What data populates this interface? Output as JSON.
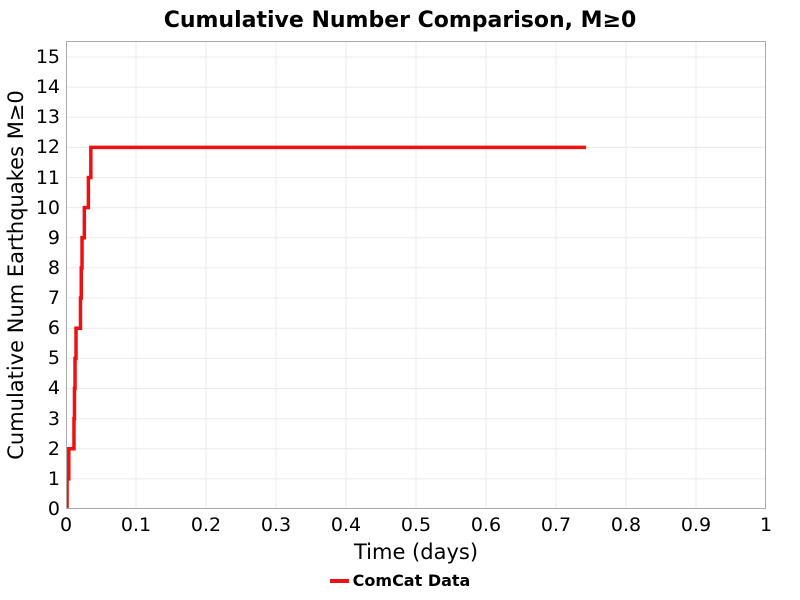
{
  "chart_data": {
    "type": "line",
    "title": "Cumulative Number Comparison, M≥0",
    "xlabel": "Time (days)",
    "ylabel": "Cumulative Num Earthquakes M≥0",
    "xlim": [
      0,
      1
    ],
    "ylim": [
      0,
      15.53
    ],
    "grid": true,
    "x_ticks": [
      {
        "value": 0.0,
        "label": "0"
      },
      {
        "value": 0.1,
        "label": "0.1"
      },
      {
        "value": 0.2,
        "label": "0.2"
      },
      {
        "value": 0.3,
        "label": "0.3"
      },
      {
        "value": 0.4,
        "label": "0.4"
      },
      {
        "value": 0.5,
        "label": "0.5"
      },
      {
        "value": 0.6,
        "label": "0.6"
      },
      {
        "value": 0.7,
        "label": "0.7"
      },
      {
        "value": 0.8,
        "label": "0.8"
      },
      {
        "value": 0.9,
        "label": "0.9"
      },
      {
        "value": 1.0,
        "label": "1"
      }
    ],
    "y_ticks": [
      {
        "value": 0,
        "label": "0"
      },
      {
        "value": 1,
        "label": "1"
      },
      {
        "value": 2,
        "label": "2"
      },
      {
        "value": 3,
        "label": "3"
      },
      {
        "value": 4,
        "label": "4"
      },
      {
        "value": 5,
        "label": "5"
      },
      {
        "value": 6,
        "label": "6"
      },
      {
        "value": 7,
        "label": "7"
      },
      {
        "value": 8,
        "label": "8"
      },
      {
        "value": 9,
        "label": "9"
      },
      {
        "value": 10,
        "label": "10"
      },
      {
        "value": 11,
        "label": "11"
      },
      {
        "value": 12,
        "label": "12"
      },
      {
        "value": 13,
        "label": "13"
      },
      {
        "value": 14,
        "label": "14"
      },
      {
        "value": 15,
        "label": "15"
      }
    ],
    "legend": {
      "position": "bottom-center",
      "entries": [
        {
          "label": "ComCat Data",
          "color": "#ee1111"
        }
      ]
    },
    "series": [
      {
        "name": "ComCat Data",
        "color": "#ee1111",
        "line_width": 3.5,
        "step": "post",
        "points": [
          [
            0.0,
            0
          ],
          [
            0.0015,
            1
          ],
          [
            0.004,
            2
          ],
          [
            0.0114,
            3
          ],
          [
            0.0121,
            4
          ],
          [
            0.0129,
            5
          ],
          [
            0.0143,
            6
          ],
          [
            0.0207,
            7
          ],
          [
            0.0218,
            8
          ],
          [
            0.0229,
            9
          ],
          [
            0.0262,
            10
          ],
          [
            0.032,
            11
          ],
          [
            0.0355,
            12
          ],
          [
            0.743,
            12
          ]
        ]
      }
    ]
  },
  "colors": {
    "accent": "#ee1111",
    "grid": "#ebebeb",
    "frame": "#a9a9a9",
    "text": "#000000",
    "background": "#ffffff"
  }
}
